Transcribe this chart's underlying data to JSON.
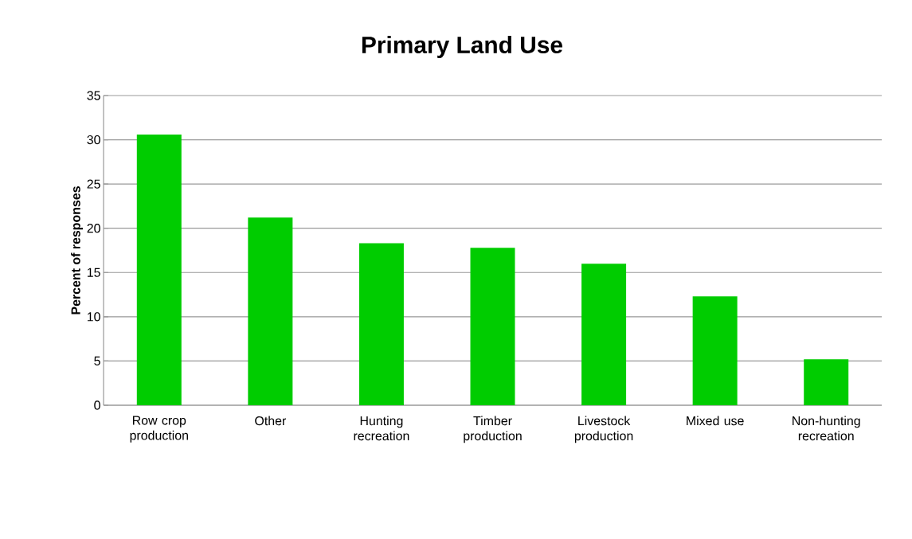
{
  "chart_data": {
    "type": "bar",
    "title": "Primary Land Use",
    "ylabel": "Percent of responses",
    "categories": [
      "Row crop production",
      "Other",
      "Hunting recreation",
      "Timber production",
      "Livestock production",
      "Mixed use",
      "Non-hunting recreation"
    ],
    "values": [
      30.6,
      21.2,
      18.3,
      17.8,
      16.0,
      12.3,
      5.2
    ],
    "color": "#00cc00",
    "ylim": [
      0,
      35
    ],
    "yticks": [
      0,
      5,
      10,
      15,
      20,
      25,
      30,
      35
    ],
    "grid": "y"
  }
}
